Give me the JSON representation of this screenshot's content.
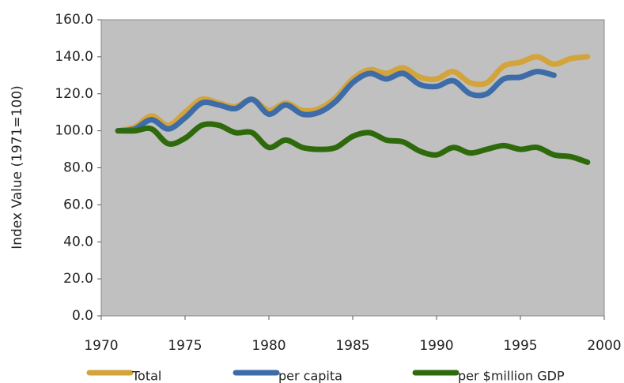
{
  "chart_data": {
    "type": "line",
    "y_label": "Index Value (1971=100)",
    "x": [
      1971,
      1972,
      1973,
      1974,
      1975,
      1976,
      1977,
      1978,
      1979,
      1980,
      1981,
      1982,
      1983,
      1984,
      1985,
      1986,
      1987,
      1988,
      1989,
      1990,
      1991,
      1992,
      1993,
      1994,
      1995,
      1996,
      1997,
      1998,
      1999
    ],
    "series": [
      {
        "name": "Total",
        "color": "#d4a43c",
        "values": [
          100,
          102,
          108,
          103,
          110,
          117,
          115,
          113,
          117,
          111,
          115,
          111,
          112,
          118,
          128,
          133,
          131,
          134,
          129,
          128,
          132,
          126,
          126,
          135,
          137,
          140,
          136,
          139,
          140
        ]
      },
      {
        "name": "per capita",
        "color": "#3d6ca8",
        "values": [
          100,
          101,
          106,
          101,
          107,
          115,
          114,
          112,
          117,
          109,
          114,
          109,
          110,
          116,
          126,
          131,
          128,
          131,
          125,
          124,
          127,
          120,
          120,
          128,
          129,
          132,
          130,
          null,
          null
        ]
      },
      {
        "name": "per $million GDP",
        "color": "#2e6a0c",
        "values": [
          100,
          100,
          101,
          93,
          96,
          103,
          103,
          99,
          99,
          91,
          95,
          91,
          90,
          91,
          97,
          99,
          95,
          94,
          89,
          87,
          91,
          88,
          90,
          92,
          90,
          91,
          87,
          86,
          83
        ]
      }
    ],
    "xlim": [
      1970,
      2000
    ],
    "xticks": [
      1970,
      1975,
      1980,
      1985,
      1990,
      1995,
      2000
    ],
    "ylim": [
      0,
      160
    ],
    "yticks": [
      {
        "value": 0,
        "label": "0.0"
      },
      {
        "value": 20,
        "label": "20.0"
      },
      {
        "value": 40,
        "label": "40.0"
      },
      {
        "value": 60,
        "label": "60.0"
      },
      {
        "value": 80,
        "label": "80.0"
      },
      {
        "value": 100,
        "label": "100.0"
      },
      {
        "value": 120,
        "label": "120.0"
      },
      {
        "value": 140,
        "label": "140.0"
      },
      {
        "value": 160,
        "label": "160.0"
      }
    ],
    "legend": "bottom"
  }
}
